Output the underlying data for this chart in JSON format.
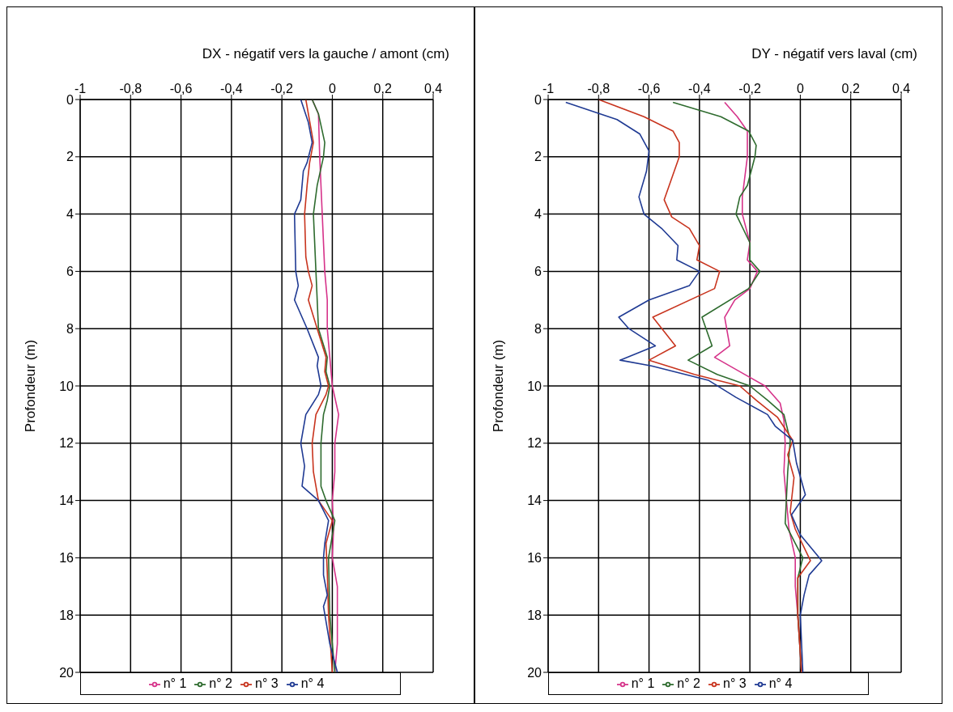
{
  "chart_data": [
    {
      "type": "line",
      "xlabel": "DX - négatif vers la gauche / amont (cm)",
      "ylabel": "Profondeur (m)",
      "xlim": [
        -1,
        0.4
      ],
      "xticks": [
        {
          "value": -1,
          "label": "-1"
        },
        {
          "value": -0.8,
          "label": "-0,8"
        },
        {
          "value": -0.6,
          "label": "-0,6"
        },
        {
          "value": -0.4,
          "label": "-0,4"
        },
        {
          "value": -0.2,
          "label": "-0,2"
        },
        {
          "value": 0,
          "label": "0"
        },
        {
          "value": 0.2,
          "label": "0,2"
        },
        {
          "value": 0.4,
          "label": "0,4"
        }
      ],
      "ylim": [
        20,
        0
      ],
      "yticks": [
        0,
        2,
        4,
        6,
        8,
        10,
        12,
        14,
        16,
        18,
        20
      ],
      "grid": true,
      "legend": "bottom",
      "marker": "none",
      "line_style": "solid",
      "series": [
        {
          "name": "n° 1",
          "color": "#d6338a",
          "x": [
            -0.08,
            -0.055,
            -0.05,
            -0.04,
            -0.03,
            -0.02,
            -0.02,
            -0.01,
            0,
            0.025,
            0.01,
            0.01,
            0,
            0.005,
            0,
            0.02,
            0.02,
            0.02,
            0.01
          ],
          "values": [
            0,
            0.5,
            2,
            4,
            6,
            7,
            8,
            9,
            10,
            11,
            12,
            13,
            14,
            15,
            16,
            17,
            18,
            19,
            20
          ]
        },
        {
          "name": "n° 2",
          "color": "#2e6b2e",
          "x": [
            -0.08,
            -0.055,
            -0.03,
            -0.035,
            -0.06,
            -0.075,
            -0.065,
            -0.055,
            -0.02,
            -0.025,
            -0.01,
            -0.02,
            -0.035,
            -0.045,
            -0.045,
            -0.025,
            0.01,
            -0.015,
            -0.01,
            0.01
          ],
          "values": [
            0,
            0.5,
            1.5,
            2,
            3,
            4,
            6,
            8,
            9,
            9.5,
            10,
            10.5,
            11,
            12,
            13.5,
            14,
            14.7,
            16,
            18,
            20
          ]
        },
        {
          "name": "n° 3",
          "color": "#c8341e",
          "x": [
            -0.105,
            -0.075,
            -0.09,
            -0.1,
            -0.11,
            -0.105,
            -0.095,
            -0.08,
            -0.095,
            -0.06,
            -0.025,
            -0.03,
            -0.015,
            -0.025,
            -0.065,
            -0.08,
            -0.075,
            -0.055,
            0,
            -0.025,
            -0.02,
            -0.015,
            0
          ],
          "values": [
            0,
            1.5,
            2.2,
            3,
            4,
            5.5,
            6,
            6.5,
            7,
            8,
            9,
            9.5,
            10,
            10.3,
            11,
            12,
            13,
            14,
            14.7,
            15.5,
            16.5,
            18,
            20
          ]
        },
        {
          "name": "n° 4",
          "color": "#1f3a93",
          "x": [
            -0.125,
            -0.095,
            -0.08,
            -0.1,
            -0.115,
            -0.125,
            -0.15,
            -0.145,
            -0.135,
            -0.15,
            -0.1,
            -0.055,
            -0.06,
            -0.045,
            -0.055,
            -0.105,
            -0.125,
            -0.11,
            -0.12,
            -0.055,
            -0.015,
            -0.03,
            -0.035,
            -0.035,
            -0.02,
            -0.035,
            -0.01,
            0.02
          ],
          "values": [
            0,
            0.8,
            1.5,
            2.2,
            2.5,
            3.5,
            4,
            6,
            6.5,
            7,
            8,
            9,
            9.3,
            10,
            10.3,
            11,
            12,
            12.8,
            13.5,
            14,
            14.7,
            15.5,
            16,
            16.6,
            17.3,
            17.7,
            19,
            20
          ]
        }
      ]
    },
    {
      "type": "line",
      "xlabel": "DY - négatif vers laval (cm)",
      "ylabel": "Profondeur (m)",
      "xlim": [
        -1,
        0.4
      ],
      "xticks": [
        {
          "value": -1,
          "label": "-1"
        },
        {
          "value": -0.8,
          "label": "-0,8"
        },
        {
          "value": -0.6,
          "label": "-0,6"
        },
        {
          "value": -0.4,
          "label": "-0,4"
        },
        {
          "value": -0.2,
          "label": "-0,2"
        },
        {
          "value": 0,
          "label": "0"
        },
        {
          "value": 0.2,
          "label": "0,2"
        },
        {
          "value": 0.4,
          "label": "0,4"
        }
      ],
      "ylim": [
        20,
        0
      ],
      "yticks": [
        0,
        2,
        4,
        6,
        8,
        10,
        12,
        14,
        16,
        18,
        20
      ],
      "grid": true,
      "legend": "bottom",
      "marker": "none",
      "line_style": "solid",
      "series": [
        {
          "name": "n° 1",
          "color": "#d6338a",
          "x": [
            -0.3,
            -0.25,
            -0.21,
            -0.21,
            -0.23,
            -0.23,
            -0.2,
            -0.21,
            -0.17,
            -0.2,
            -0.26,
            -0.3,
            -0.28,
            -0.34,
            -0.22,
            -0.14,
            -0.08,
            -0.065,
            -0.06,
            -0.065,
            -0.055,
            -0.045,
            -0.02,
            -0.02,
            -0.01,
            0.005
          ],
          "values": [
            0.1,
            0.6,
            1.1,
            2,
            3.4,
            4,
            5,
            5.6,
            6,
            6.6,
            7,
            7.6,
            8.6,
            9,
            9.6,
            10,
            10.6,
            11.2,
            12,
            13,
            14,
            15,
            16,
            17,
            18,
            20
          ]
        },
        {
          "name": "n° 2",
          "color": "#2e6b2e",
          "x": [
            -0.505,
            -0.315,
            -0.205,
            -0.175,
            -0.18,
            -0.21,
            -0.24,
            -0.255,
            -0.2,
            -0.2,
            -0.16,
            -0.205,
            -0.39,
            -0.35,
            -0.445,
            -0.33,
            -0.2,
            -0.13,
            -0.065,
            -0.04,
            -0.05,
            -0.06,
            -0.02,
            0.01,
            -0.01,
            -0.01,
            0.005
          ],
          "values": [
            0.1,
            0.6,
            1.1,
            1.6,
            2,
            3,
            3.4,
            4,
            5,
            5.6,
            6,
            6.6,
            7.6,
            8.6,
            9.1,
            9.6,
            10,
            10.5,
            11,
            11.9,
            13,
            14.8,
            15.5,
            16,
            16.7,
            18,
            20
          ]
        },
        {
          "name": "n° 3",
          "color": "#c8341e",
          "x": [
            -0.8,
            -0.62,
            -0.505,
            -0.48,
            -0.48,
            -0.54,
            -0.51,
            -0.44,
            -0.4,
            -0.41,
            -0.32,
            -0.34,
            -0.585,
            -0.495,
            -0.6,
            -0.42,
            -0.24,
            -0.175,
            -0.09,
            -0.03,
            -0.05,
            -0.025,
            -0.04,
            -0.02,
            0.04,
            -0.01,
            -0.01,
            0.005
          ],
          "values": [
            0,
            0.6,
            1.1,
            1.5,
            2,
            3.5,
            4.1,
            4.5,
            5.1,
            5.6,
            6,
            6.6,
            7.6,
            8.6,
            9.1,
            9.6,
            10,
            10.5,
            11.1,
            11.9,
            12.4,
            13.2,
            14.4,
            15,
            16.1,
            16.7,
            18,
            20
          ]
        },
        {
          "name": "n° 4",
          "color": "#1f3a93",
          "x": [
            -0.93,
            -0.727,
            -0.637,
            -0.6,
            -0.61,
            -0.64,
            -0.62,
            -0.55,
            -0.485,
            -0.49,
            -0.4,
            -0.44,
            -0.6,
            -0.72,
            -0.68,
            -0.575,
            -0.715,
            -0.59,
            -0.365,
            -0.255,
            -0.13,
            -0.1,
            -0.03,
            -0.015,
            0.02,
            -0.035,
            0,
            0.085,
            0.035,
            0.015,
            0,
            0.01
          ],
          "values": [
            0.1,
            0.7,
            1.2,
            1.8,
            2.5,
            3.4,
            4,
            4.5,
            5.1,
            5.6,
            6,
            6.5,
            7,
            7.6,
            8,
            8.6,
            9.1,
            9.3,
            9.8,
            10.4,
            11,
            11.4,
            11.9,
            12.7,
            13.8,
            14.5,
            15.2,
            16.1,
            16.6,
            17.3,
            18,
            20
          ]
        }
      ]
    }
  ]
}
